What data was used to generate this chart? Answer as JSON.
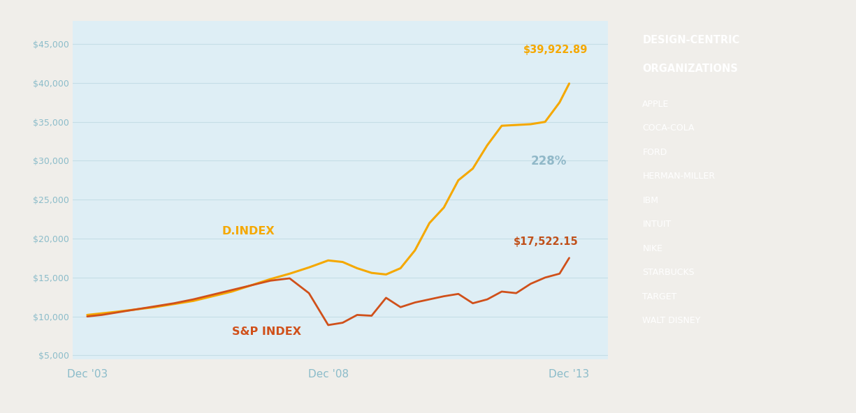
{
  "fig_bg_color": "#f0eeea",
  "plot_bg_color": "#deeef5",
  "d_index_color": "#F5A800",
  "sp_index_color": "#D0501A",
  "annotation_d_color": "#F5A800",
  "annotation_sp_color": "#C0501A",
  "annotation_pct_color": "#90b8c8",
  "d_index_label": "D.INDEX",
  "sp_index_label": "S&P INDEX",
  "d_index_end_label": "$39,922.89",
  "sp_index_end_label": "$17,522.15",
  "pct_label": "228%",
  "legend_bg_color": "#F5A800",
  "legend_title_line1": "DESIGN-CENTRIC",
  "legend_title_line2": "ORGANIZATIONS",
  "legend_items": [
    "APPLE",
    "COCA-COLA",
    "FORD",
    "HERMAN-MILLER",
    "IBM",
    "INTUIT",
    "NIKE",
    "STARBUCKS",
    "TARGET",
    "WALT DISNEY"
  ],
  "x_labels": [
    "Dec '03",
    "Dec '08",
    "Dec '13"
  ],
  "ytick_labels": [
    "$5,000",
    "$10,000",
    "$15,000",
    "$20,000",
    "$25,000",
    "$30,000",
    "$35,000",
    "$40,000",
    "$45,000"
  ],
  "yticks": [
    5000,
    10000,
    15000,
    20000,
    25000,
    30000,
    35000,
    40000,
    45000
  ],
  "grid_color": "#c5dde6",
  "tick_label_color": "#8bbcca",
  "d_index_x": [
    0,
    0.3,
    0.6,
    1.0,
    1.4,
    1.8,
    2.2,
    2.6,
    3.0,
    3.4,
    3.8,
    4.2,
    4.6,
    5.0,
    5.3,
    5.6,
    5.9,
    6.2,
    6.5,
    6.8,
    7.1,
    7.4,
    7.7,
    8.0,
    8.3,
    8.6,
    8.9,
    9.2,
    9.5,
    9.8,
    10.0
  ],
  "d_index_y": [
    10200,
    10400,
    10600,
    10900,
    11200,
    11600,
    12000,
    12600,
    13200,
    14000,
    14800,
    15500,
    16300,
    17200,
    17000,
    16200,
    15600,
    15400,
    16200,
    18500,
    22000,
    24000,
    27500,
    29000,
    32000,
    34500,
    34600,
    34700,
    35000,
    37500,
    39922
  ],
  "sp_index_x": [
    0,
    0.3,
    0.6,
    1.0,
    1.4,
    1.8,
    2.2,
    2.6,
    3.0,
    3.4,
    3.8,
    4.2,
    4.6,
    5.0,
    5.3,
    5.6,
    5.9,
    6.2,
    6.5,
    6.8,
    7.1,
    7.4,
    7.7,
    8.0,
    8.3,
    8.6,
    8.9,
    9.2,
    9.5,
    9.8,
    10.0
  ],
  "sp_index_y": [
    10000,
    10200,
    10500,
    10900,
    11300,
    11700,
    12200,
    12800,
    13400,
    14000,
    14600,
    14900,
    13000,
    8900,
    9200,
    10200,
    10100,
    12400,
    11200,
    11800,
    12200,
    12600,
    12900,
    11700,
    12200,
    13200,
    13000,
    14200,
    15000,
    15500,
    17522
  ]
}
